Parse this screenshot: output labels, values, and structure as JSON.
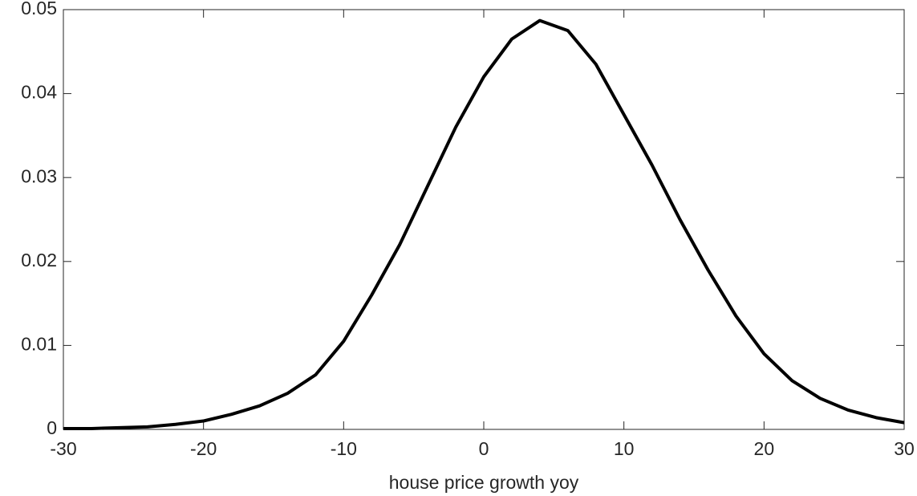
{
  "chart_data": {
    "type": "line",
    "x_label": "house price growth yoy",
    "x": [
      -30,
      -28,
      -26,
      -24,
      -22,
      -20,
      -18,
      -16,
      -14,
      -12,
      -10,
      -8,
      -6,
      -4,
      -2,
      0,
      2,
      4,
      6,
      8,
      10,
      12,
      14,
      16,
      18,
      20,
      22,
      24,
      26,
      28,
      30
    ],
    "series": [
      {
        "color": "#000000",
        "values": [
          0.0001,
          0.0001,
          0.0002,
          0.0003,
          0.0006,
          0.001,
          0.0018,
          0.0028,
          0.0043,
          0.0065,
          0.0105,
          0.016,
          0.022,
          0.029,
          0.036,
          0.042,
          0.0465,
          0.0487,
          0.0475,
          0.0435,
          0.0375,
          0.0315,
          0.025,
          0.019,
          0.0135,
          0.009,
          0.0058,
          0.0037,
          0.0023,
          0.0014,
          0.0008
        ]
      }
    ],
    "xlim": [
      -30,
      30
    ],
    "xticks": [
      -30,
      -20,
      -10,
      0,
      10,
      20,
      30
    ],
    "ylim": [
      0,
      0.05
    ],
    "yticks": [
      0,
      0.01,
      0.02,
      0.03,
      0.04,
      0.05
    ]
  }
}
